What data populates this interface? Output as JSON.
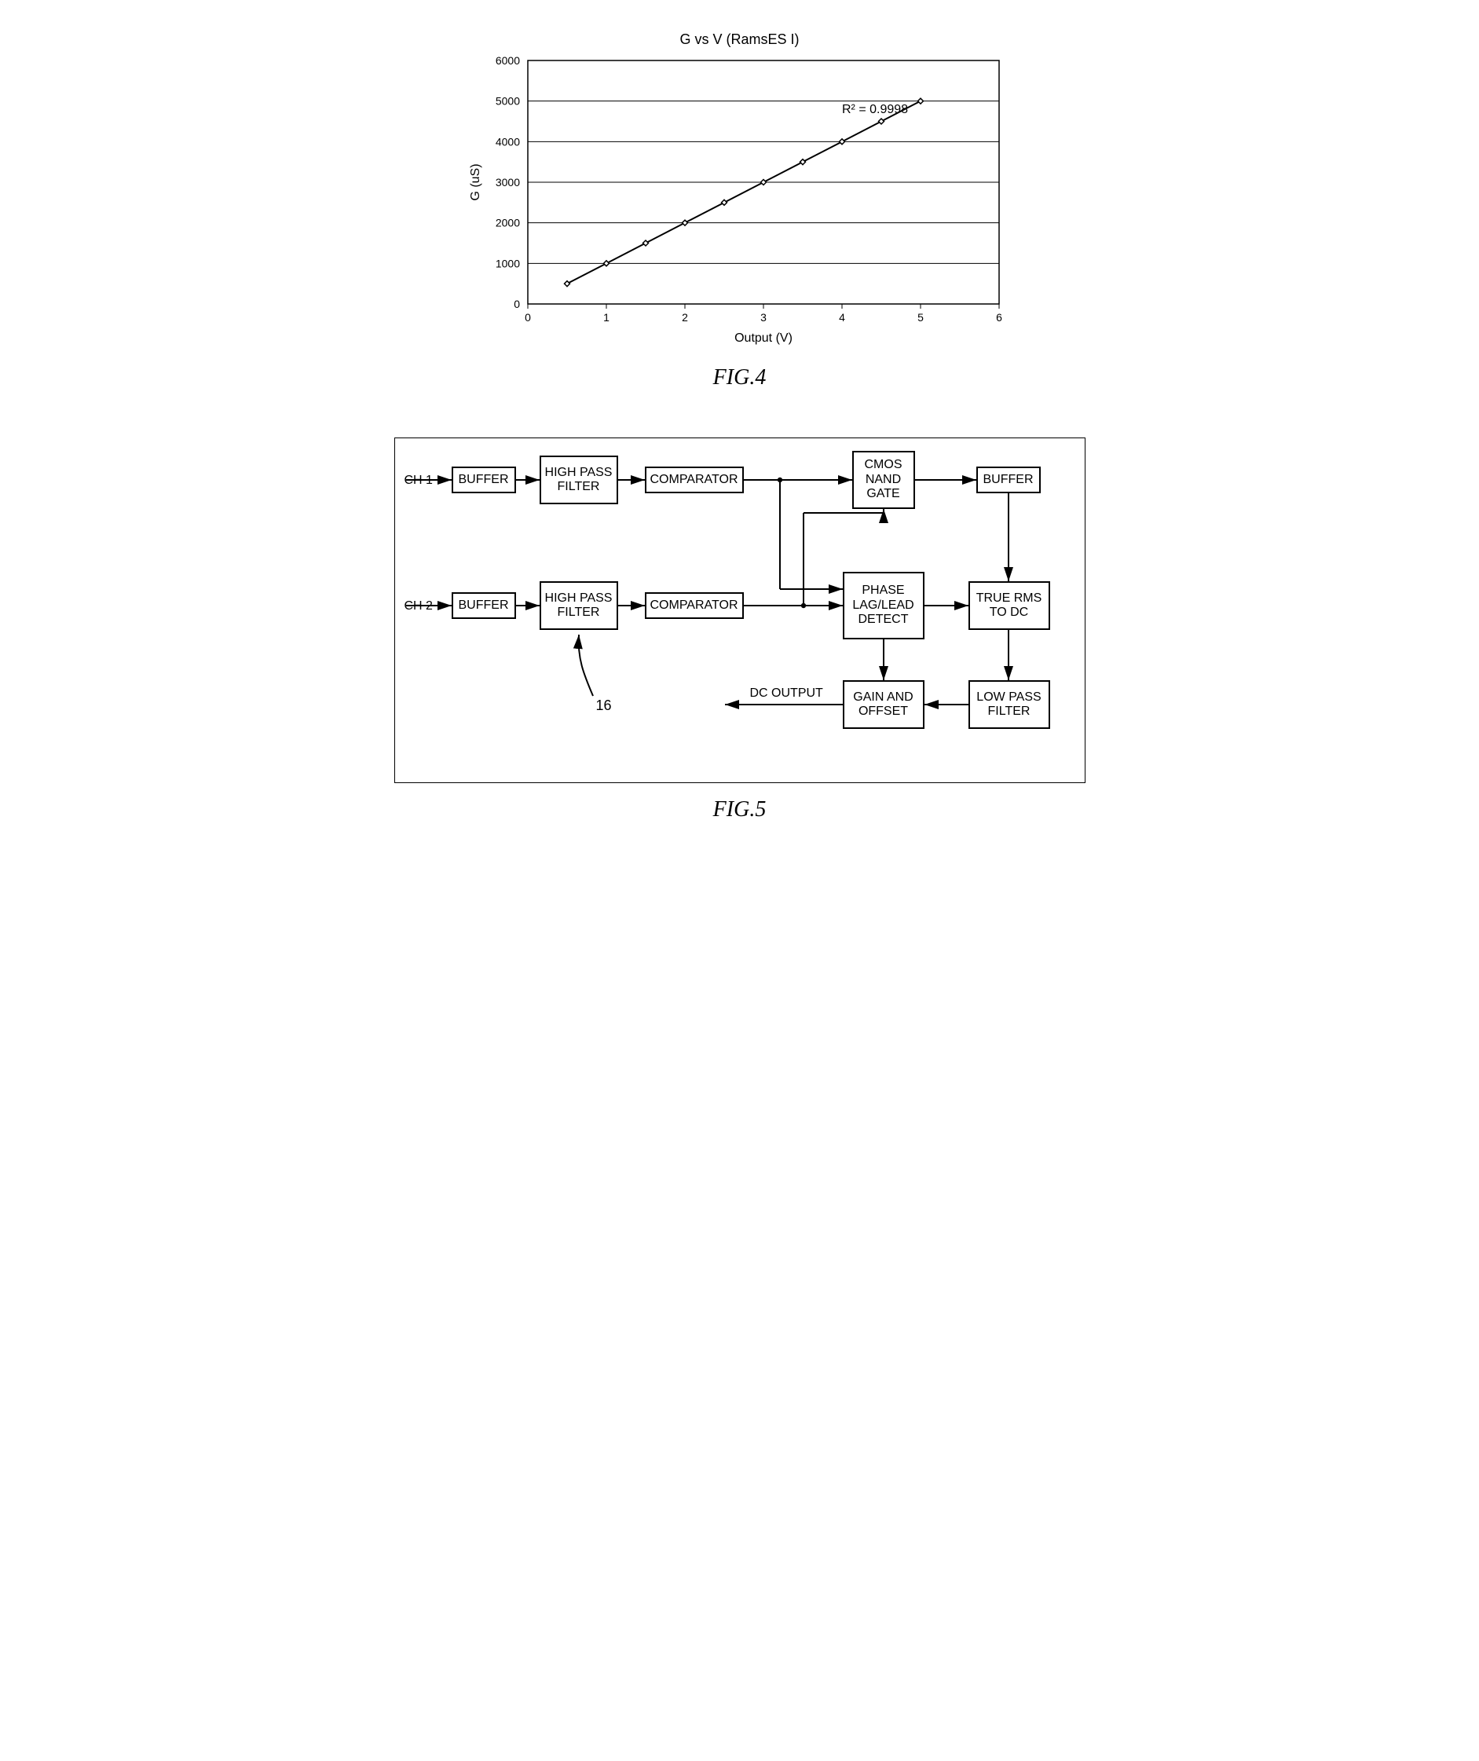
{
  "fig4": {
    "title": "G vs V (RamsES I)",
    "caption": "FIG.4",
    "chart": {
      "type": "line",
      "xlabel": "Output (V)",
      "ylabel": "G (uS)",
      "xlim": [
        0,
        6
      ],
      "ylim": [
        0,
        6000
      ],
      "xtick_step": 1,
      "ytick_step": 1000,
      "annotation": "R² = 0.9998",
      "annotation_fontsize": 16,
      "label_fontsize": 16,
      "tick_fontsize": 14,
      "grid_color": "#000000",
      "border_color": "#000000",
      "background_color": "#ffffff",
      "line_color": "#000000",
      "line_width": 2,
      "marker": "diamond",
      "marker_size": 7,
      "marker_stroke": "#000000",
      "marker_fill": "#ffffff",
      "data": [
        {
          "x": 0.5,
          "y": 500
        },
        {
          "x": 1.0,
          "y": 1000
        },
        {
          "x": 1.5,
          "y": 1500
        },
        {
          "x": 2.0,
          "y": 2000
        },
        {
          "x": 2.5,
          "y": 2500
        },
        {
          "x": 3.0,
          "y": 3000
        },
        {
          "x": 3.5,
          "y": 3500
        },
        {
          "x": 4.0,
          "y": 4000
        },
        {
          "x": 4.5,
          "y": 4500
        },
        {
          "x": 5.0,
          "y": 5000
        }
      ]
    }
  },
  "fig5": {
    "caption": "FIG.5",
    "ref_number": "16",
    "labels": {
      "ch1": "CH 1",
      "ch2": "CH 2",
      "dc_out": "DC OUTPUT"
    },
    "blocks": {
      "buffer1": "BUFFER",
      "hpf1": "HIGH PASS\nFILTER",
      "comp1": "COMPARATOR",
      "nand": "CMOS\nNAND\nGATE",
      "buffer3": "BUFFER",
      "buffer2": "BUFFER",
      "hpf2": "HIGH PASS\nFILTER",
      "comp2": "COMPARATOR",
      "phase": "PHASE\nLAG/LEAD\nDETECT",
      "rms": "TRUE RMS\nTO DC",
      "gain": "GAIN AND\nOFFSET",
      "lpf": "LOW PASS\nFILTER"
    },
    "style": {
      "block_border_color": "#000000",
      "block_border_width": 2,
      "arrow_color": "#000000",
      "arrow_width": 2,
      "font_size": 16,
      "background": "#ffffff"
    }
  }
}
